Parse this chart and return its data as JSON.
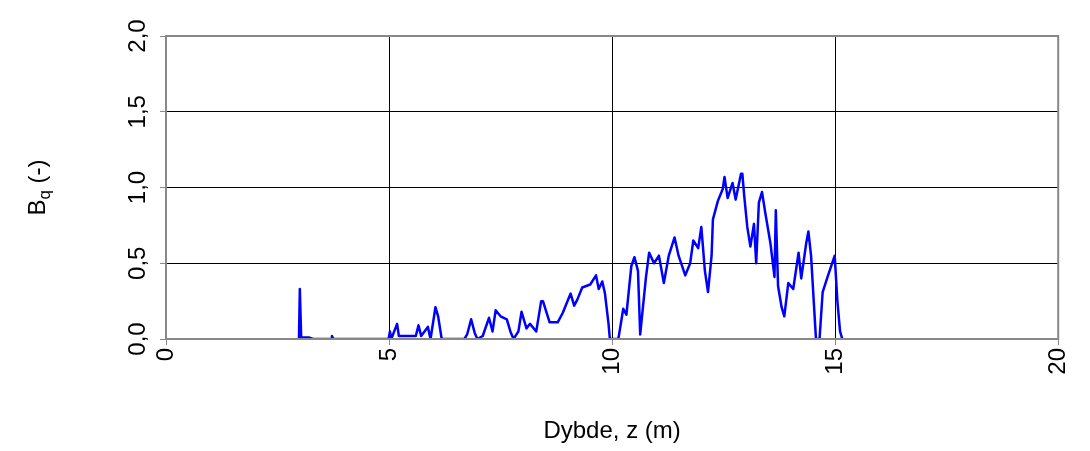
{
  "chart_data": {
    "type": "line",
    "xlabel": "Dybde, z (m)",
    "ylabel": "B$_{q}$ (-)",
    "x": [
      2.98,
      3.0,
      3.03,
      3.2,
      3.3,
      3.7,
      3.72,
      3.75,
      4.99,
      5.02,
      5.05,
      5.18,
      5.22,
      5.6,
      5.66,
      5.72,
      5.82,
      5.87,
      5.93,
      6.04,
      6.1,
      6.18,
      6.69,
      6.75,
      6.84,
      6.92,
      6.98,
      7.1,
      7.24,
      7.32,
      7.39,
      7.5,
      7.64,
      7.72,
      7.79,
      7.9,
      7.97,
      8.08,
      8.16,
      8.3,
      8.41,
      8.45,
      8.6,
      8.78,
      8.89,
      9.07,
      9.15,
      9.22,
      9.33,
      9.51,
      9.64,
      9.7,
      9.78,
      9.84,
      9.92,
      9.95,
      10.14,
      10.25,
      10.32,
      10.43,
      10.5,
      10.58,
      10.63,
      10.76,
      10.83,
      10.94,
      11.05,
      11.16,
      11.27,
      11.4,
      11.49,
      11.64,
      11.75,
      11.82,
      11.93,
      12.0,
      12.08,
      12.15,
      12.23,
      12.26,
      12.37,
      12.48,
      12.52,
      12.59,
      12.7,
      12.77,
      12.89,
      12.92,
      12.96,
      13.03,
      13.1,
      13.18,
      13.23,
      13.29,
      13.36,
      13.43,
      13.55,
      13.64,
      13.67,
      13.72,
      13.8,
      13.86,
      13.95,
      14.06,
      14.18,
      14.24,
      14.35,
      14.4,
      14.46,
      14.57,
      14.65,
      14.72,
      14.83,
      14.99,
      15.05,
      15.11,
      15.16
    ],
    "values": [
      0,
      0.33,
      0.01,
      0.01,
      0,
      0,
      0.02,
      0,
      0,
      0.05,
      0,
      0.1,
      0.02,
      0.02,
      0.09,
      0.02,
      0.06,
      0.08,
      0,
      0.21,
      0.15,
      0,
      0,
      0.03,
      0.13,
      0.04,
      0,
      0.02,
      0.14,
      0.05,
      0.19,
      0.15,
      0.13,
      0.05,
      0,
      0.05,
      0.18,
      0.07,
      0.1,
      0.05,
      0.25,
      0.25,
      0.11,
      0.11,
      0.17,
      0.3,
      0.22,
      0.26,
      0.34,
      0.36,
      0.42,
      0.33,
      0.38,
      0.3,
      0.1,
      0,
      0,
      0.2,
      0.16,
      0.48,
      0.54,
      0.45,
      0.03,
      0.41,
      0.57,
      0.5,
      0.55,
      0.37,
      0.55,
      0.67,
      0.55,
      0.42,
      0.5,
      0.65,
      0.6,
      0.74,
      0.45,
      0.31,
      0.55,
      0.79,
      0.91,
      0.99,
      1.07,
      0.93,
      1.03,
      0.92,
      1.09,
      1.09,
      0.95,
      0.74,
      0.61,
      0.76,
      0.5,
      0.9,
      0.97,
      0.84,
      0.63,
      0.41,
      0.85,
      0.35,
      0.21,
      0.15,
      0.37,
      0.33,
      0.57,
      0.4,
      0.63,
      0.71,
      0.55,
      0,
      0,
      0.31,
      0.41,
      0.55,
      0.25,
      0.05,
      0
    ],
    "color": "#0000ff",
    "xlim": [
      0,
      20
    ],
    "xticks": [
      0,
      5,
      10,
      15,
      20
    ],
    "ylim": [
      0,
      2
    ],
    "yticks": [
      {
        "value": 0,
        "label": "0,0"
      },
      {
        "value": 0.5,
        "label": "0,5"
      },
      {
        "value": 1,
        "label": "1,0"
      },
      {
        "value": 1.5,
        "label": "1,5"
      },
      {
        "value": 2,
        "label": "2,0"
      }
    ],
    "grid": true,
    "legend": false,
    "marker": "none",
    "line_style": "solid"
  }
}
